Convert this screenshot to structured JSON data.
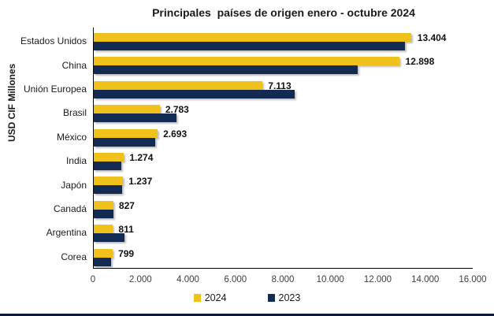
{
  "chart_data": {
    "type": "bar",
    "orientation": "horizontal",
    "title": "Principales  países de origen enero - octubre 2024",
    "ylabel": "USD CIF Millones",
    "categories": [
      "Estados Unidos",
      "China",
      "Unión Europea",
      "Brasil",
      "México",
      "India",
      "Japón",
      "Canadá",
      "Argentina",
      "Corea"
    ],
    "series": [
      {
        "name": "2024",
        "color": "#F0C11A",
        "values": [
          13404,
          12898,
          7113,
          2783,
          2693,
          1274,
          1237,
          827,
          811,
          799
        ],
        "labels": [
          "13.404",
          "12.898",
          "7.113",
          "2.783",
          "2.693",
          "1.274",
          "1.237",
          "827",
          "811",
          "799"
        ]
      },
      {
        "name": "2023",
        "color": "#132A52",
        "values": [
          13150,
          11160,
          8490,
          3480,
          2590,
          1160,
          1210,
          830,
          1310,
          740
        ]
      }
    ],
    "xlim": [
      0,
      16000
    ],
    "x_ticks": [
      {
        "value": 0,
        "label": "0"
      },
      {
        "value": 2000,
        "label": "2.000"
      },
      {
        "value": 4000,
        "label": "4.000"
      },
      {
        "value": 6000,
        "label": "6.000"
      },
      {
        "value": 8000,
        "label": "8.000"
      },
      {
        "value": 10000,
        "label": "10.000"
      },
      {
        "value": 12000,
        "label": "12.000"
      },
      {
        "value": 14000,
        "label": "14.000"
      },
      {
        "value": 16000,
        "label": "16.000"
      }
    ],
    "legend_position": "bottom",
    "grid": false,
    "colors": {
      "bar_2024": "#F0C11A",
      "bar_2023": "#132A52",
      "axis": "#000000",
      "bottom_rule": "#0d1b3a"
    }
  }
}
